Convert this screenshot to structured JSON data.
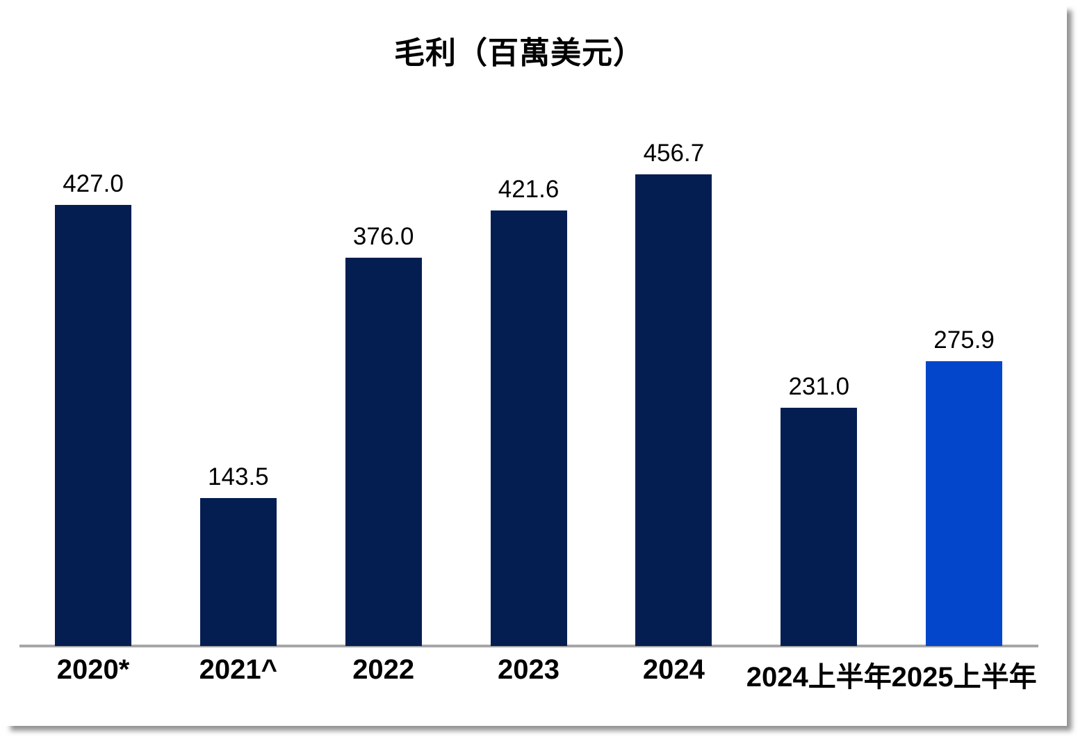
{
  "chart_data": {
    "type": "bar",
    "title": "毛利（百萬美元）",
    "categories": [
      "2020*",
      "2021^",
      "2022",
      "2023",
      "2024",
      "2024上半年",
      "2025上半年"
    ],
    "values": [
      427.0,
      143.5,
      376.0,
      421.6,
      456.7,
      231.0,
      275.9
    ],
    "value_labels": [
      "427.0",
      "143.5",
      "376.0",
      "421.6",
      "456.7",
      "231.0",
      "275.9"
    ],
    "xlabel": "",
    "ylabel": "",
    "ylim": [
      0,
      500
    ],
    "grid": false,
    "legend": "none",
    "highlight_index": 6,
    "colors": {
      "bar_primary": "#041E52",
      "bar_highlight": "#0446CB",
      "axis_line": "#A6A6A6",
      "label_text": "#000000",
      "background": "#FFFFFF"
    }
  }
}
